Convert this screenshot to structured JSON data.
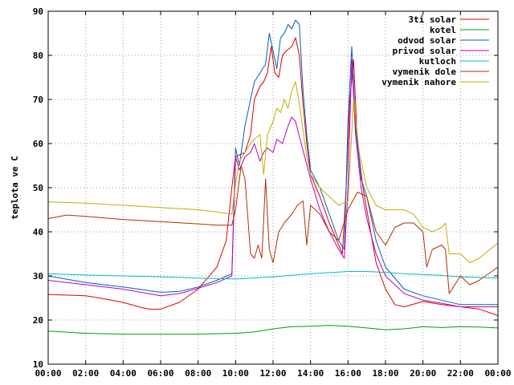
{
  "chart_data": {
    "type": "line",
    "title": "",
    "xlabel": "",
    "ylabel": "teplota ve C",
    "xlim": [
      0,
      24
    ],
    "ylim": [
      10,
      90
    ],
    "grid": true,
    "legend_position": "top-right",
    "x_ticks": [
      {
        "value": 0,
        "label": "00:00"
      },
      {
        "value": 2,
        "label": "02:00"
      },
      {
        "value": 4,
        "label": "04:00"
      },
      {
        "value": 6,
        "label": "06:00"
      },
      {
        "value": 8,
        "label": "08:00"
      },
      {
        "value": 10,
        "label": "10:00"
      },
      {
        "value": 12,
        "label": "12:00"
      },
      {
        "value": 14,
        "label": "14:00"
      },
      {
        "value": 16,
        "label": "16:00"
      },
      {
        "value": 18,
        "label": "18:00"
      },
      {
        "value": 20,
        "label": "20:00"
      },
      {
        "value": 22,
        "label": "22:00"
      },
      {
        "value": 24,
        "label": "00:00"
      }
    ],
    "y_ticks": [
      {
        "value": 10,
        "label": "10"
      },
      {
        "value": 20,
        "label": "20"
      },
      {
        "value": 30,
        "label": "30"
      },
      {
        "value": 40,
        "label": "40"
      },
      {
        "value": 50,
        "label": "50"
      },
      {
        "value": 60,
        "label": "60"
      },
      {
        "value": 70,
        "label": "70"
      },
      {
        "value": 80,
        "label": "80"
      },
      {
        "value": 90,
        "label": "90"
      }
    ],
    "series": [
      {
        "name": "3ti solar",
        "color": "#e00000",
        "points": [
          [
            0,
            25.8
          ],
          [
            2,
            25.5
          ],
          [
            3,
            24.8
          ],
          [
            4,
            24
          ],
          [
            5,
            22.8
          ],
          [
            5.5,
            22.4
          ],
          [
            6,
            22.5
          ],
          [
            7,
            24
          ],
          [
            8,
            27
          ],
          [
            9,
            32
          ],
          [
            9.5,
            38
          ],
          [
            9.8,
            50
          ],
          [
            10,
            57
          ],
          [
            10.5,
            58
          ],
          [
            10.8,
            62
          ],
          [
            11,
            70
          ],
          [
            11.3,
            73
          ],
          [
            11.5,
            74
          ],
          [
            11.7,
            76
          ],
          [
            11.9,
            82
          ],
          [
            12.1,
            76
          ],
          [
            12.3,
            75
          ],
          [
            12.5,
            80
          ],
          [
            12.7,
            81
          ],
          [
            13,
            82
          ],
          [
            13.2,
            84
          ],
          [
            13.4,
            80
          ],
          [
            13.6,
            69
          ],
          [
            13.8,
            60
          ],
          [
            14,
            53
          ],
          [
            14.5,
            48
          ],
          [
            15,
            42
          ],
          [
            15.5,
            37
          ],
          [
            15.7,
            35
          ],
          [
            15.9,
            50
          ],
          [
            16.1,
            70
          ],
          [
            16.3,
            79
          ],
          [
            16.5,
            60
          ],
          [
            16.8,
            50
          ],
          [
            17,
            45
          ],
          [
            17.5,
            33
          ],
          [
            18,
            27
          ],
          [
            18.5,
            23.5
          ],
          [
            19,
            23
          ],
          [
            20,
            24.2
          ],
          [
            21,
            23.5
          ],
          [
            22,
            23
          ],
          [
            23,
            22.5
          ],
          [
            24,
            21
          ]
        ]
      },
      {
        "name": "kotel",
        "color": "#00a000",
        "points": [
          [
            0,
            17.5
          ],
          [
            2,
            17
          ],
          [
            4,
            16.8
          ],
          [
            6,
            16.8
          ],
          [
            8,
            16.8
          ],
          [
            10,
            17
          ],
          [
            11,
            17.3
          ],
          [
            12,
            18
          ],
          [
            13,
            18.5
          ],
          [
            14,
            18.6
          ],
          [
            15,
            18.8
          ],
          [
            16,
            18.6
          ],
          [
            17,
            18.2
          ],
          [
            18,
            17.8
          ],
          [
            19,
            18
          ],
          [
            20,
            18.5
          ],
          [
            21,
            18.3
          ],
          [
            22,
            18.5
          ],
          [
            23,
            18.4
          ],
          [
            24,
            18.2
          ]
        ]
      },
      {
        "name": "odvod solar",
        "color": "#0060c0",
        "points": [
          [
            0,
            30
          ],
          [
            2,
            28.5
          ],
          [
            4,
            27.5
          ],
          [
            6,
            26.3
          ],
          [
            7,
            26.5
          ],
          [
            8,
            27.5
          ],
          [
            9,
            29
          ],
          [
            9.8,
            30.5
          ],
          [
            10,
            59
          ],
          [
            10.2,
            55
          ],
          [
            10.5,
            64
          ],
          [
            10.8,
            70
          ],
          [
            11,
            74
          ],
          [
            11.3,
            76
          ],
          [
            11.6,
            78
          ],
          [
            11.8,
            85
          ],
          [
            12,
            81
          ],
          [
            12.2,
            77
          ],
          [
            12.4,
            84
          ],
          [
            12.6,
            85
          ],
          [
            12.8,
            87
          ],
          [
            13,
            86
          ],
          [
            13.2,
            88
          ],
          [
            13.4,
            87
          ],
          [
            13.6,
            72
          ],
          [
            13.8,
            62
          ],
          [
            14,
            54
          ],
          [
            14.5,
            50
          ],
          [
            15,
            44
          ],
          [
            15.5,
            38
          ],
          [
            15.8,
            36
          ],
          [
            16,
            65
          ],
          [
            16.2,
            82
          ],
          [
            16.4,
            64
          ],
          [
            16.7,
            52
          ],
          [
            17,
            48
          ],
          [
            17.5,
            38
          ],
          [
            18,
            32
          ],
          [
            19,
            27
          ],
          [
            20,
            25.5
          ],
          [
            21,
            24.5
          ],
          [
            22,
            23.5
          ],
          [
            24,
            23.5
          ]
        ]
      },
      {
        "name": "privod solar",
        "color": "#c000c0",
        "points": [
          [
            0,
            29
          ],
          [
            2,
            28
          ],
          [
            4,
            27
          ],
          [
            6,
            25.5
          ],
          [
            7,
            26
          ],
          [
            8,
            27.2
          ],
          [
            9,
            28.5
          ],
          [
            9.8,
            30
          ],
          [
            10,
            57
          ],
          [
            10.2,
            54
          ],
          [
            10.5,
            57
          ],
          [
            10.8,
            58
          ],
          [
            11,
            60
          ],
          [
            11.3,
            56
          ],
          [
            11.5,
            58
          ],
          [
            11.7,
            59
          ],
          [
            12,
            58
          ],
          [
            12.2,
            61
          ],
          [
            12.5,
            60
          ],
          [
            12.8,
            64
          ],
          [
            13,
            66
          ],
          [
            13.2,
            65
          ],
          [
            13.5,
            60
          ],
          [
            14,
            52
          ],
          [
            14.5,
            45
          ],
          [
            15,
            40
          ],
          [
            15.5,
            36
          ],
          [
            15.8,
            34
          ],
          [
            16,
            50
          ],
          [
            16.2,
            79
          ],
          [
            16.4,
            62
          ],
          [
            16.7,
            50
          ],
          [
            17,
            43
          ],
          [
            17.5,
            35
          ],
          [
            18,
            30
          ],
          [
            19,
            26
          ],
          [
            20,
            24.5
          ],
          [
            21,
            23.8
          ],
          [
            22,
            23
          ],
          [
            24,
            23
          ]
        ]
      },
      {
        "name": "kutloch",
        "color": "#00c0c0",
        "points": [
          [
            0,
            30.5
          ],
          [
            2,
            30.2
          ],
          [
            4,
            30
          ],
          [
            6,
            29.8
          ],
          [
            8,
            29.5
          ],
          [
            10,
            29.3
          ],
          [
            12,
            29.8
          ],
          [
            14,
            30.5
          ],
          [
            16,
            31
          ],
          [
            17,
            31
          ],
          [
            18,
            30.8
          ],
          [
            19,
            30.5
          ],
          [
            20,
            30.3
          ],
          [
            21,
            30.1
          ],
          [
            22,
            29.8
          ],
          [
            24,
            29.5
          ]
        ]
      },
      {
        "name": "vymenik dole",
        "color": "#b03000",
        "points": [
          [
            0,
            43
          ],
          [
            1,
            43.8
          ],
          [
            2,
            43.5
          ],
          [
            4,
            42.8
          ],
          [
            6,
            42.3
          ],
          [
            8,
            41.8
          ],
          [
            9,
            41.5
          ],
          [
            9.8,
            41.5
          ],
          [
            10,
            45
          ],
          [
            10.3,
            55
          ],
          [
            10.5,
            52
          ],
          [
            10.8,
            35
          ],
          [
            11,
            34
          ],
          [
            11.2,
            37
          ],
          [
            11.4,
            34
          ],
          [
            11.6,
            52
          ],
          [
            11.8,
            36
          ],
          [
            12,
            33
          ],
          [
            12.3,
            40
          ],
          [
            12.6,
            42
          ],
          [
            13,
            44
          ],
          [
            13.3,
            46
          ],
          [
            13.6,
            47
          ],
          [
            13.8,
            37
          ],
          [
            14,
            46
          ],
          [
            14.5,
            44
          ],
          [
            15,
            40
          ],
          [
            15.5,
            38
          ],
          [
            16,
            45
          ],
          [
            16.5,
            49
          ],
          [
            17,
            48
          ],
          [
            17.5,
            40
          ],
          [
            18,
            37
          ],
          [
            18.5,
            41
          ],
          [
            19,
            42
          ],
          [
            19.5,
            42
          ],
          [
            20,
            40
          ],
          [
            20.2,
            32
          ],
          [
            20.5,
            36
          ],
          [
            21,
            37
          ],
          [
            21.2,
            36
          ],
          [
            21.4,
            26
          ],
          [
            22,
            30
          ],
          [
            22.5,
            28
          ],
          [
            23,
            29
          ],
          [
            24,
            32
          ]
        ]
      },
      {
        "name": "vymenik nahore",
        "color": "#c0b000",
        "points": [
          [
            0,
            46.8
          ],
          [
            2,
            46.5
          ],
          [
            4,
            46
          ],
          [
            6,
            45.5
          ],
          [
            8,
            45
          ],
          [
            9,
            44.5
          ],
          [
            9.8,
            44
          ],
          [
            10,
            51
          ],
          [
            10.2,
            56
          ],
          [
            10.5,
            58
          ],
          [
            10.8,
            60
          ],
          [
            11,
            61
          ],
          [
            11.3,
            62
          ],
          [
            11.5,
            53
          ],
          [
            11.7,
            62
          ],
          [
            12,
            65
          ],
          [
            12.2,
            68
          ],
          [
            12.4,
            67
          ],
          [
            12.6,
            70
          ],
          [
            12.8,
            68
          ],
          [
            13,
            72
          ],
          [
            13.2,
            74
          ],
          [
            13.4,
            69
          ],
          [
            13.6,
            63
          ],
          [
            13.8,
            57
          ],
          [
            14,
            53
          ],
          [
            14.5,
            50
          ],
          [
            15,
            48
          ],
          [
            15.5,
            46
          ],
          [
            16,
            47
          ],
          [
            16.3,
            70
          ],
          [
            16.6,
            58
          ],
          [
            17,
            50
          ],
          [
            17.5,
            46
          ],
          [
            18,
            45
          ],
          [
            19,
            45
          ],
          [
            19.5,
            44
          ],
          [
            20,
            41
          ],
          [
            20.5,
            40
          ],
          [
            21,
            41
          ],
          [
            21.2,
            42
          ],
          [
            21.4,
            35
          ],
          [
            22,
            35
          ],
          [
            22.5,
            33
          ],
          [
            23,
            34
          ],
          [
            24,
            37.5
          ]
        ]
      }
    ]
  }
}
